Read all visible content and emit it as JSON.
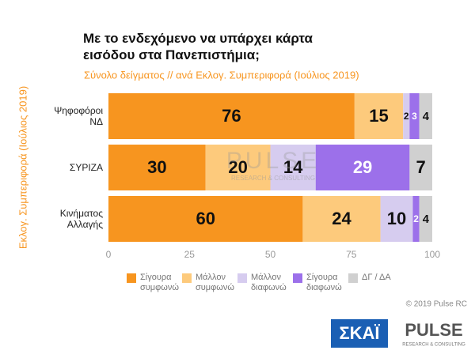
{
  "chart_data": {
    "type": "stacked-bar-horizontal",
    "title": "Με το ενδεχόμενο να υπάρχει κάρτα εισόδου στα Πανεπιστήμια;",
    "subtitle": "Σύνολο δείγματος // ανά Εκλογ. Συμπεριφορά (Ιούλιος 2019)",
    "y_axis_label": "Εκλογ. Συμπεριφορά (Ιούλιος 2019)",
    "categories": [
      "Ψηφοφόροι ΝΔ",
      "ΣΥΡΙΖΑ",
      "Κινήματος Αλλαγής"
    ],
    "series": [
      {
        "name": "Σίγουρα συμφωνώ",
        "color": "#f7951f",
        "values": [
          76,
          30,
          60
        ]
      },
      {
        "name": "Μάλλον συμφωνώ",
        "color": "#fdca7c",
        "values": [
          15,
          20,
          24
        ]
      },
      {
        "name": "Μάλλον διαφωνώ",
        "color": "#d6ccef",
        "values": [
          2,
          14,
          10
        ]
      },
      {
        "name": "Σίγουρα διαφωνώ",
        "color": "#9c70ea",
        "values": [
          3,
          29,
          2
        ]
      },
      {
        "name": "ΔΓ / ΔΑ",
        "color": "#d0d0d0",
        "values": [
          4,
          7,
          4
        ]
      }
    ],
    "xlim": [
      0,
      100
    ],
    "xticks": [
      0,
      25,
      50,
      75,
      100
    ],
    "grid": false,
    "legend": "bottom",
    "watermark": "PULSE",
    "watermark_subtitle": "RESEARCH & CONSULTING"
  },
  "footer": {
    "copyright": "© 2019 Pulse RC",
    "logo_left": "ΣΚΑΪ",
    "logo_right": "PULSE",
    "logo_right_subtitle": "RESEARCH & CONSULTING"
  }
}
